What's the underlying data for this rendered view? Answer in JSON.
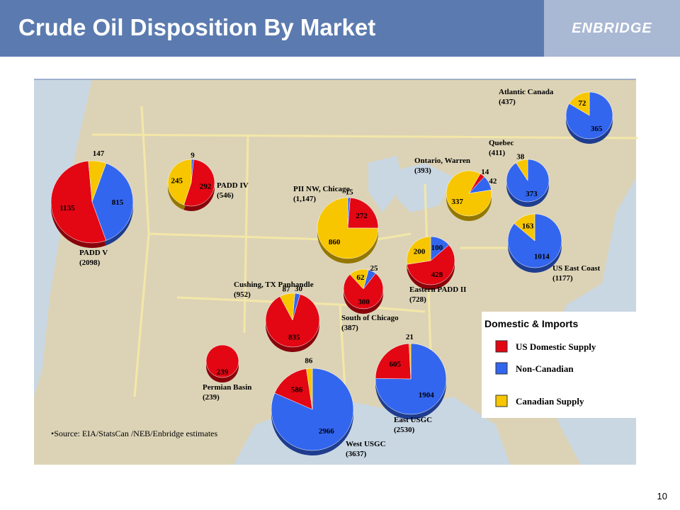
{
  "header": {
    "title": "Crude Oil Disposition By Market",
    "logo": "ENBRIDGE"
  },
  "legend": {
    "title": "Domestic & Imports",
    "items": [
      {
        "label": "US Domestic Supply",
        "color": "#e30613"
      },
      {
        "label": "Non-Canadian",
        "color": "#3366ee"
      },
      {
        "label": "Canadian Supply",
        "color": "#f7c600"
      }
    ]
  },
  "markets": [
    {
      "name": "PADD V",
      "total": "(2098)",
      "values": [
        1135,
        815,
        147
      ]
    },
    {
      "name": "PADD IV",
      "total": "(546)",
      "values": [
        292,
        9,
        245
      ]
    },
    {
      "name": "PII NW, Chicago",
      "total": "(1,147)",
      "values": [
        272,
        15,
        860
      ]
    },
    {
      "name": "Ontario, Warren",
      "total": "(393)",
      "values": [
        14,
        42,
        337
      ]
    },
    {
      "name": "Quebec",
      "total": "(411)",
      "values": [
        null,
        373,
        38
      ]
    },
    {
      "name": "Atlantic Canada",
      "total": "(437)",
      "values": [
        null,
        365,
        72
      ]
    },
    {
      "name": "US East Coast",
      "total": "(1177)",
      "values": [
        null,
        1014,
        163
      ]
    },
    {
      "name": "Eastern PADD II",
      "total": "(728)",
      "values": [
        428,
        100,
        200
      ]
    },
    {
      "name": "South of Chicago",
      "total": "(387)",
      "values": [
        300,
        25,
        62
      ]
    },
    {
      "name": "Cushing, TX Panhandle",
      "total": "(952)",
      "values": [
        835,
        30,
        87
      ]
    },
    {
      "name": "Permian Basin",
      "total": "(239)",
      "values": [
        239,
        null,
        null
      ]
    },
    {
      "name": "West USGC",
      "total": "(3637)",
      "values": [
        586,
        2966,
        86
      ]
    },
    {
      "name": "East USGC",
      "total": "(2530)",
      "values": [
        605,
        1904,
        21
      ]
    }
  ],
  "source": "•Source: EIA/StatsCan /NEB/Enbridge estimates",
  "page_number": "10"
}
